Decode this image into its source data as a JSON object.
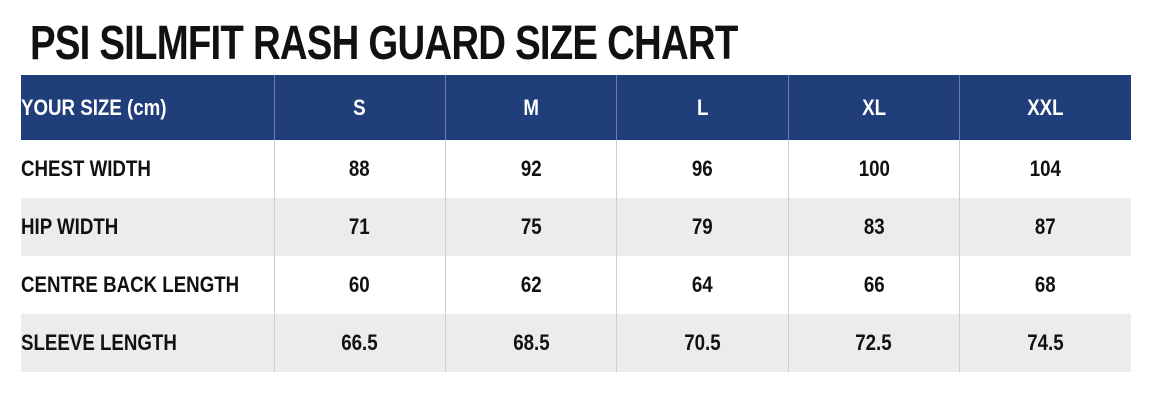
{
  "title": "PSI SILMFIT RASH GUARD SIZE CHART",
  "colors": {
    "header_bg": "#1f3e7a",
    "header_text": "#ffffff",
    "stripe_bg": "#ececec",
    "text": "#111111"
  },
  "table": {
    "header": {
      "label": "YOUR SIZE (cm)",
      "sizes": [
        "S",
        "M",
        "L",
        "XL",
        "XXL"
      ]
    },
    "rows": [
      {
        "label": "CHEST WIDTH",
        "values": [
          "88",
          "92",
          "96",
          "100",
          "104"
        ]
      },
      {
        "label": "HIP WIDTH",
        "values": [
          "71",
          "75",
          "79",
          "83",
          "87"
        ]
      },
      {
        "label": "CENTRE BACK LENGTH",
        "values": [
          "60",
          "62",
          "64",
          "66",
          "68"
        ]
      },
      {
        "label": "SLEEVE LENGTH",
        "values": [
          "66.5",
          "68.5",
          "70.5",
          "72.5",
          "74.5"
        ]
      }
    ]
  }
}
